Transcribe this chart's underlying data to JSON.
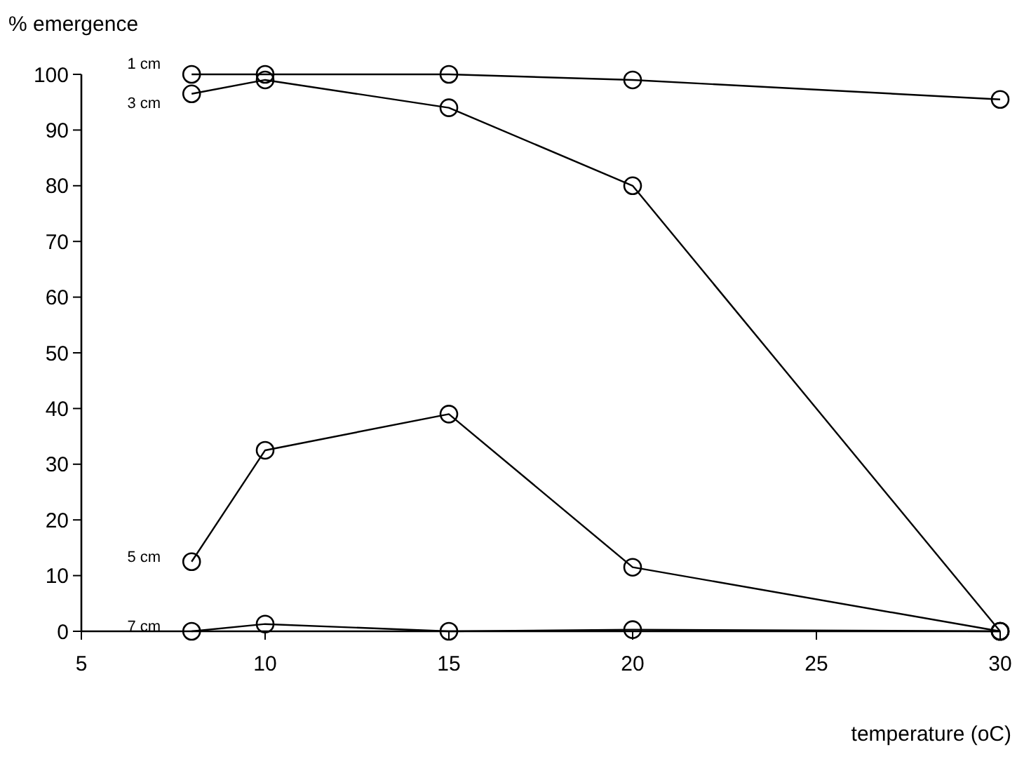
{
  "chart_data": {
    "type": "line",
    "ylabel": "% emergence",
    "xlabel": "temperature (oC)",
    "x": [
      8,
      10,
      15,
      20,
      30
    ],
    "series": [
      {
        "name": "1 cm",
        "color": "#000000",
        "values": [
          100,
          100,
          100,
          99,
          95.5
        ]
      },
      {
        "name": "3 cm",
        "color": "#000000",
        "values": [
          96.5,
          99,
          94,
          80,
          0
        ]
      },
      {
        "name": "5 cm",
        "color": "#000000",
        "values": [
          12.5,
          32.5,
          39,
          11.5,
          0
        ]
      },
      {
        "name": "7 cm",
        "color": "#000000",
        "values": [
          0,
          1.3,
          0,
          0.3,
          0
        ]
      }
    ],
    "xlim": [
      5,
      30
    ],
    "xticks": [
      5,
      10,
      15,
      20,
      25,
      30
    ],
    "ylim": [
      0,
      100
    ],
    "yticks": [
      0,
      10,
      20,
      30,
      40,
      50,
      60,
      70,
      80,
      90,
      100
    ],
    "grid": false,
    "marker": "circle",
    "line_style": "solid"
  }
}
